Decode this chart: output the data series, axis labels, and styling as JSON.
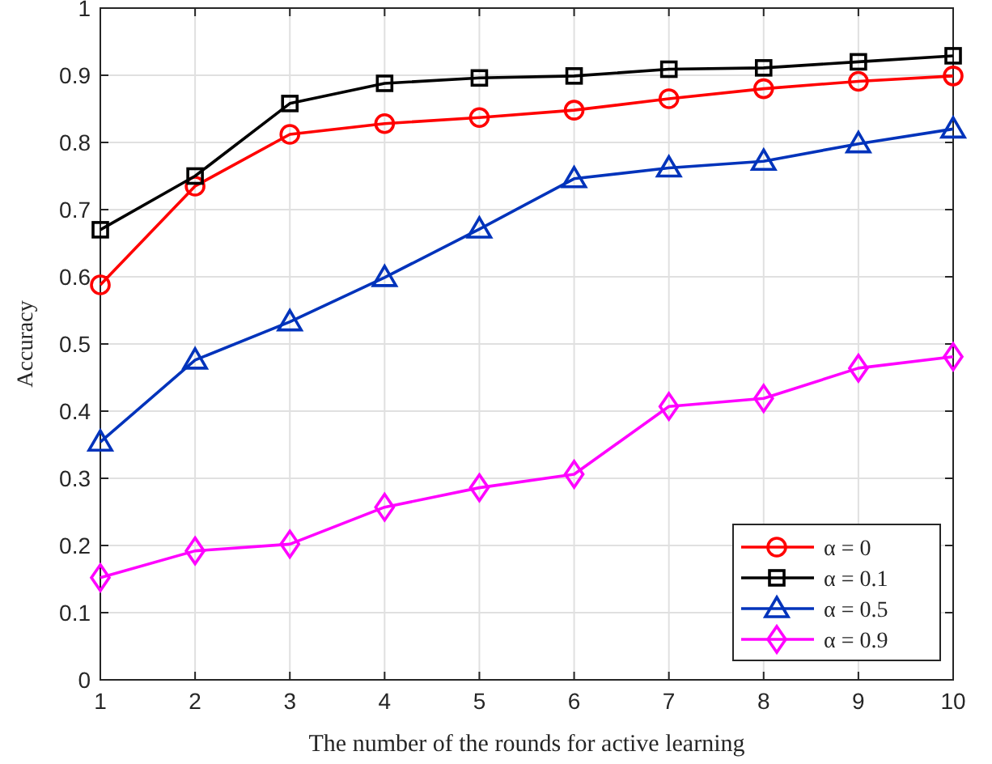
{
  "chart_data": {
    "type": "line",
    "xlabel": "The number of the rounds for active learning",
    "ylabel": "Accuracy",
    "x": [
      1,
      2,
      3,
      4,
      5,
      6,
      7,
      8,
      9,
      10
    ],
    "series": [
      {
        "name": "α = 0",
        "color": "#ff0000",
        "marker": "circle",
        "values": [
          0.588,
          0.735,
          0.812,
          0.828,
          0.837,
          0.848,
          0.865,
          0.88,
          0.891,
          0.899
        ]
      },
      {
        "name": "α = 0.1",
        "color": "#000000",
        "marker": "square",
        "values": [
          0.67,
          0.75,
          0.858,
          0.888,
          0.896,
          0.899,
          0.909,
          0.911,
          0.92,
          0.929
        ]
      },
      {
        "name": "α = 0.5",
        "color": "#0033bb",
        "marker": "triangle",
        "values": [
          0.354,
          0.476,
          0.533,
          0.599,
          0.671,
          0.746,
          0.762,
          0.772,
          0.798,
          0.82
        ]
      },
      {
        "name": "α = 0.9",
        "color": "#ff00ff",
        "marker": "diamond",
        "values": [
          0.152,
          0.192,
          0.202,
          0.257,
          0.286,
          0.306,
          0.407,
          0.419,
          0.464,
          0.481
        ]
      }
    ],
    "xlim": [
      1,
      10
    ],
    "xticks": [
      1,
      2,
      3,
      4,
      5,
      6,
      7,
      8,
      9,
      10
    ],
    "ylim": [
      0,
      1
    ],
    "yticks": [
      0,
      0.1,
      0.2,
      0.3,
      0.4,
      0.5,
      0.6,
      0.7,
      0.8,
      0.9,
      1
    ],
    "grid": true,
    "legend": "bottom right",
    "line_style": "solid"
  }
}
